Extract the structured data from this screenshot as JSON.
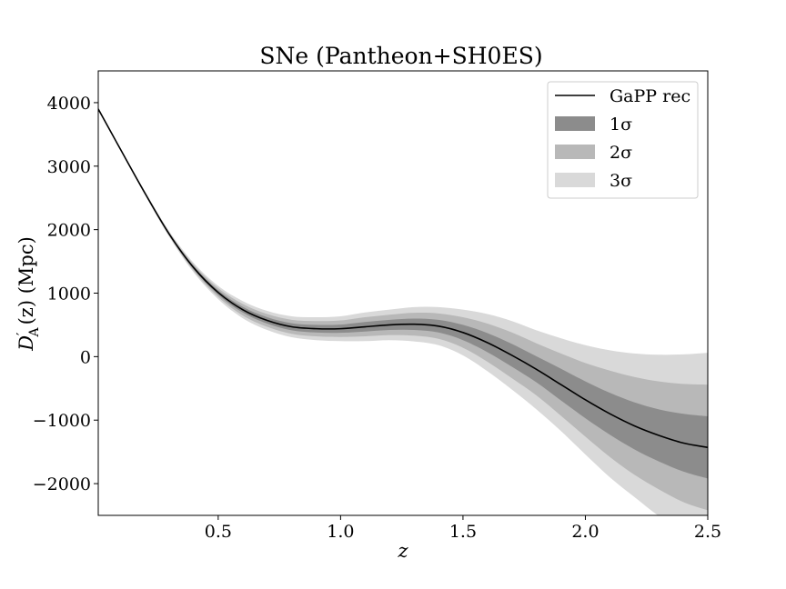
{
  "chart_data": {
    "type": "line",
    "title": "SNe (Pantheon+SH0ES)",
    "xlabel": "z",
    "ylabel": "D′A(z) (Mpc)",
    "ylabel_parts": {
      "base": "D",
      "prime": "′",
      "subscript": "A",
      "rest": "(z) (Mpc)"
    },
    "xlim": [
      0.01,
      2.5
    ],
    "ylim": [
      -2500,
      4500
    ],
    "xticks": [
      0.5,
      1.0,
      1.5,
      2.0,
      2.5
    ],
    "xtick_labels": [
      "0.5",
      "1.0",
      "1.5",
      "2.0",
      "2.5"
    ],
    "yticks": [
      -2000,
      -1000,
      0,
      1000,
      2000,
      3000,
      4000
    ],
    "ytick_labels": [
      "−2000",
      "−1000",
      "0",
      "1000",
      "2000",
      "3000",
      "4000"
    ],
    "grid": false,
    "legend_position": "top-right",
    "x": [
      0.01,
      0.1,
      0.2,
      0.3,
      0.4,
      0.5,
      0.6,
      0.7,
      0.8,
      0.9,
      1.0,
      1.1,
      1.2,
      1.3,
      1.4,
      1.5,
      1.6,
      1.7,
      1.8,
      1.9,
      2.0,
      2.1,
      2.2,
      2.3,
      2.4,
      2.5
    ],
    "series": [
      {
        "name": "GaPP rec",
        "kind": "line",
        "color": "#000000",
        "values": [
          3900,
          3270,
          2580,
          1930,
          1400,
          1010,
          740,
          570,
          470,
          440,
          440,
          470,
          500,
          510,
          480,
          380,
          220,
          20,
          -200,
          -440,
          -680,
          -900,
          -1090,
          -1240,
          -1360,
          -1430
        ]
      },
      {
        "name": "1σ",
        "kind": "band",
        "color": "#8c8c8c",
        "upper": [
          3905,
          3275,
          2590,
          1945,
          1425,
          1045,
          785,
          620,
          525,
          500,
          505,
          545,
          580,
          600,
          580,
          500,
          370,
          200,
          5,
          -190,
          -390,
          -570,
          -720,
          -830,
          -900,
          -940
        ],
        "lower": [
          3895,
          3265,
          2570,
          1915,
          1375,
          975,
          695,
          520,
          415,
          380,
          375,
          395,
          420,
          420,
          380,
          260,
          70,
          -160,
          -405,
          -690,
          -970,
          -1230,
          -1460,
          -1650,
          -1810,
          -1920
        ]
      },
      {
        "name": "2σ",
        "kind": "band",
        "color": "#b8b8b8",
        "upper": [
          3910,
          3280,
          2600,
          1960,
          1450,
          1080,
          830,
          670,
          580,
          560,
          570,
          620,
          660,
          690,
          680,
          620,
          520,
          380,
          210,
          50,
          -100,
          -220,
          -320,
          -390,
          -430,
          -440
        ],
        "lower": [
          3890,
          3260,
          2560,
          1900,
          1350,
          940,
          650,
          470,
          360,
          320,
          310,
          320,
          340,
          330,
          280,
          140,
          -80,
          -340,
          -610,
          -930,
          -1260,
          -1580,
          -1860,
          -2090,
          -2290,
          -2420
        ]
      },
      {
        "name": "3σ",
        "kind": "band",
        "color": "#d9d9d9",
        "upper": [
          3915,
          3285,
          2610,
          1975,
          1475,
          1115,
          875,
          720,
          635,
          620,
          635,
          695,
          740,
          780,
          780,
          740,
          670,
          560,
          415,
          290,
          180,
          100,
          50,
          30,
          35,
          60
        ],
        "lower": [
          3885,
          3255,
          2550,
          1885,
          1325,
          905,
          605,
          420,
          305,
          260,
          245,
          245,
          260,
          240,
          180,
          20,
          -230,
          -520,
          -830,
          -1170,
          -1540,
          -1900,
          -2210,
          -2510,
          -2750,
          -2940
        ]
      }
    ]
  }
}
